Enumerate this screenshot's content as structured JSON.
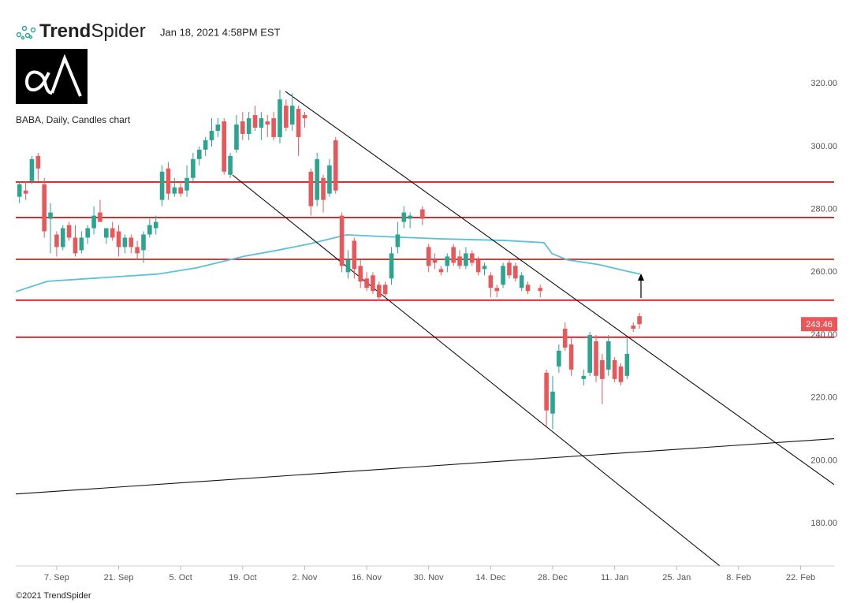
{
  "header": {
    "brand_bold": "Trend",
    "brand_light": "Spider",
    "timestamp": "Jan 18, 2021 4:58PM EST"
  },
  "footer": {
    "copyright": "©2021 TrendSpider"
  },
  "chart_data": {
    "type": "candlestick",
    "title": "BABA, Daily, Candles chart",
    "x": [
      -6,
      -5,
      -4,
      -3,
      -2,
      -1,
      0,
      1,
      2,
      3,
      4,
      5,
      6,
      7,
      8,
      9,
      10,
      11,
      12,
      13,
      14,
      15,
      16,
      17,
      18,
      19,
      20,
      21,
      22,
      23,
      24,
      25,
      26,
      27,
      28,
      29,
      30,
      31,
      32,
      33,
      34,
      35,
      36,
      37,
      38,
      39,
      40,
      41,
      42,
      43,
      44,
      45,
      46,
      47,
      48,
      49,
      50,
      51,
      52,
      53,
      54,
      55,
      56,
      57,
      59,
      60,
      61,
      62,
      63,
      64,
      65,
      66,
      67,
      68,
      69,
      70,
      71,
      72,
      73,
      74,
      75,
      76,
      78,
      79,
      80,
      81,
      82,
      83,
      85,
      86,
      87,
      88,
      89,
      90,
      91,
      92,
      93,
      94
    ],
    "open": [
      284,
      286,
      289,
      297,
      288,
      277,
      272,
      268,
      275,
      271,
      267,
      271,
      274,
      279,
      271,
      274,
      273,
      268,
      271,
      268,
      267,
      272,
      274,
      283,
      293,
      285,
      287,
      286,
      290,
      296,
      299,
      302,
      305,
      308,
      291,
      299,
      308,
      304,
      310,
      306,
      308,
      309,
      303,
      313,
      307,
      312,
      310,
      292,
      283,
      290,
      285,
      302,
      278,
      260,
      270,
      262,
      258,
      259,
      256,
      256,
      258,
      268,
      276,
      277,
      280,
      268,
      264,
      261,
      262,
      268,
      265,
      262,
      266,
      264,
      261,
      259,
      255,
      256,
      263,
      262,
      255,
      256,
      255,
      228,
      215,
      230,
      242,
      237,
      226,
      228,
      238,
      232,
      229,
      232,
      230,
      227,
      243,
      246
    ],
    "high": [
      289,
      289,
      297,
      298,
      290,
      282,
      273,
      275,
      276,
      275,
      273,
      275,
      281,
      283,
      274,
      276,
      275,
      272,
      272,
      270,
      273,
      277,
      278,
      294,
      295,
      290,
      289,
      294,
      298,
      300,
      303,
      309,
      309,
      309,
      298,
      310,
      311,
      311,
      313,
      311,
      310,
      311,
      318,
      315,
      317,
      313,
      311,
      293,
      298,
      291,
      296,
      303,
      279,
      267,
      271,
      264,
      260,
      260,
      257,
      257,
      268,
      276,
      281,
      279,
      281,
      269,
      266,
      262,
      266,
      269,
      267,
      268,
      267,
      265,
      263,
      260,
      256,
      263,
      264,
      263,
      260,
      257,
      256,
      229,
      227,
      237,
      244,
      239,
      229,
      241,
      240,
      234,
      240,
      233,
      231,
      239,
      244,
      247
    ],
    "low": [
      282,
      283,
      288,
      289,
      271,
      266,
      265,
      267,
      270,
      265,
      266,
      269,
      272,
      276,
      269,
      270,
      265,
      266,
      266,
      264,
      263,
      271,
      272,
      281,
      283,
      284,
      284,
      284,
      289,
      294,
      297,
      300,
      303,
      291,
      290,
      298,
      302,
      302,
      305,
      302,
      303,
      302,
      301,
      305,
      305,
      297,
      306,
      278,
      281,
      279,
      284,
      285,
      260,
      258,
      258,
      255,
      254,
      253,
      251,
      252,
      256,
      266,
      274,
      274,
      275,
      260,
      261,
      259,
      260,
      262,
      261,
      261,
      262,
      259,
      259,
      252,
      252,
      255,
      258,
      257,
      254,
      253,
      252,
      211,
      210,
      228,
      235,
      227,
      224,
      227,
      225,
      218,
      227,
      225,
      224,
      226,
      241,
      242
    ],
    "close": [
      288,
      285,
      296,
      293,
      273,
      279,
      268,
      274,
      271,
      266,
      271,
      274,
      278,
      276,
      274,
      271,
      268,
      271,
      268,
      266,
      272,
      275,
      276,
      292,
      285,
      287,
      285,
      290,
      296,
      299,
      302,
      305,
      307,
      292,
      297,
      307,
      304,
      309,
      306,
      309,
      307,
      303,
      315,
      306,
      313,
      303,
      309,
      281,
      296,
      283,
      294,
      286,
      262,
      264,
      261,
      257,
      255,
      254,
      252,
      253,
      266,
      272,
      279,
      278,
      277,
      262,
      263,
      260,
      265,
      263,
      262,
      266,
      263,
      260,
      262,
      255,
      254,
      262,
      259,
      258,
      259,
      254,
      254,
      216,
      222,
      235,
      236,
      229,
      227,
      240,
      227,
      226,
      238,
      226,
      225,
      234,
      242,
      243.46
    ],
    "up_color": "#2aa58f",
    "down_color": "#e8585a",
    "xlim": [
      -6.6,
      125.4
    ],
    "ylim": [
      166.5,
      322.8
    ],
    "xticks": [
      {
        "value": 0,
        "label": "7. Sep"
      },
      {
        "value": 10,
        "label": "21. Sep"
      },
      {
        "value": 20,
        "label": "5. Oct"
      },
      {
        "value": 30,
        "label": "19. Oct"
      },
      {
        "value": 40,
        "label": "2. Nov"
      },
      {
        "value": 50,
        "label": "16. Nov"
      },
      {
        "value": 60,
        "label": "30. Nov"
      },
      {
        "value": 70,
        "label": "14. Dec"
      },
      {
        "value": 80,
        "label": "28. Dec"
      },
      {
        "value": 90,
        "label": "11. Jan"
      },
      {
        "value": 100,
        "label": "25. Jan"
      },
      {
        "value": 110,
        "label": "8. Feb"
      },
      {
        "value": 120,
        "label": "22. Feb"
      }
    ],
    "yticks": [
      {
        "value": 180,
        "label": "180.00"
      },
      {
        "value": 200,
        "label": "200.00"
      },
      {
        "value": 220,
        "label": "220.00"
      },
      {
        "value": 240,
        "label": "240.00"
      },
      {
        "value": 260,
        "label": "260.00"
      },
      {
        "value": 280,
        "label": "280.00"
      },
      {
        "value": 300,
        "label": "300.00"
      },
      {
        "value": 320,
        "label": "320.00"
      }
    ],
    "levels": {
      "values": [
        288.7,
        277.4,
        264.1,
        251.1,
        239.3
      ],
      "color": "#d0202a"
    },
    "trendlines": [
      {
        "x": [
          36.9,
          125.4
        ],
        "y": [
          317.5,
          192.4
        ]
      },
      {
        "x": [
          28.4,
          106.9
        ],
        "y": [
          290.9,
          166.6
        ]
      },
      {
        "x": [
          -6.6,
          125.4
        ],
        "y": [
          189.4,
          207
        ]
      }
    ],
    "moving_average": {
      "color": "#5bc0d8",
      "x": [
        -6.6,
        -1.5,
        16.3,
        22.6,
        30.3,
        35.4,
        40.5,
        46.8,
        51.9,
        62.1,
        72.3,
        78.6,
        79.9,
        82.4,
        87.5,
        91.3,
        94.1
      ],
      "values": [
        253.8,
        257.1,
        259.4,
        261.4,
        265.1,
        266.9,
        268.9,
        271.9,
        271.4,
        270.6,
        270.1,
        269.4,
        265.9,
        263.9,
        262.4,
        260.6,
        259.4
      ]
    }
  }
}
